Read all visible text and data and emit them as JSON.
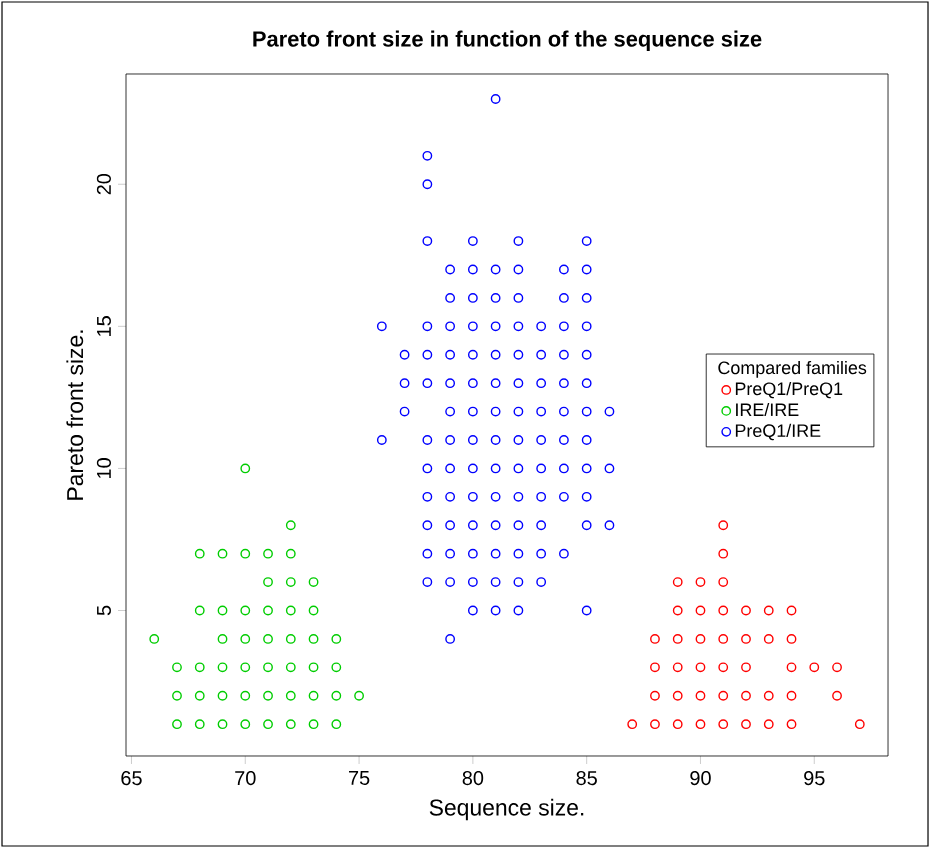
{
  "chart_data": {
    "type": "scatter",
    "title": "Pareto front size in function of the sequence size",
    "xlabel": "Sequence size.",
    "ylabel": "Pareto front size.",
    "legend_title": "Compared families",
    "xlim": [
      64.76,
      98.24
    ],
    "ylim": [
      -0.12,
      23.88
    ],
    "xticks": [
      65,
      70,
      75,
      80,
      85,
      90,
      95
    ],
    "yticks": [
      5,
      10,
      15,
      20
    ],
    "grid": false,
    "legend": "right",
    "marker": "circle",
    "series": [
      {
        "name": "PreQ1/PreQ1",
        "color": "#ff0000",
        "x": [
          91,
          91,
          89,
          90,
          91,
          89,
          90,
          91,
          92,
          93,
          94,
          88,
          89,
          90,
          91,
          92,
          93,
          94,
          88,
          89,
          90,
          91,
          92,
          94,
          95,
          96,
          88,
          89,
          90,
          91,
          92,
          93,
          94,
          96,
          87,
          88,
          89,
          90,
          91,
          92,
          93,
          94,
          97
        ],
        "values": [
          8,
          7,
          6,
          6,
          6,
          5,
          5,
          5,
          5,
          5,
          5,
          4,
          4,
          4,
          4,
          4,
          4,
          4,
          3,
          3,
          3,
          3,
          3,
          3,
          3,
          3,
          2,
          2,
          2,
          2,
          2,
          2,
          2,
          2,
          1,
          1,
          1,
          1,
          1,
          1,
          1,
          1,
          1
        ]
      },
      {
        "name": "IRE/IRE",
        "color": "#00cd00",
        "x": [
          70,
          72,
          68,
          69,
          70,
          71,
          72,
          71,
          72,
          73,
          68,
          69,
          70,
          71,
          72,
          73,
          66,
          69,
          70,
          71,
          72,
          73,
          74,
          67,
          68,
          69,
          70,
          71,
          72,
          73,
          74,
          67,
          68,
          69,
          70,
          71,
          72,
          73,
          74,
          75,
          67,
          68,
          69,
          70,
          71,
          72,
          73,
          74
        ],
        "values": [
          10,
          8,
          7,
          7,
          7,
          7,
          7,
          6,
          6,
          6,
          5,
          5,
          5,
          5,
          5,
          5,
          4,
          4,
          4,
          4,
          4,
          4,
          4,
          3,
          3,
          3,
          3,
          3,
          3,
          3,
          3,
          2,
          2,
          2,
          2,
          2,
          2,
          2,
          2,
          2,
          1,
          1,
          1,
          1,
          1,
          1,
          1,
          1
        ]
      },
      {
        "name": "PreQ1/IRE",
        "color": "#0000ff",
        "x": [
          81,
          78,
          78,
          78,
          80,
          82,
          85,
          79,
          80,
          81,
          82,
          84,
          85,
          79,
          80,
          81,
          82,
          84,
          85,
          76,
          78,
          79,
          80,
          81,
          82,
          83,
          84,
          85,
          77,
          78,
          79,
          80,
          81,
          82,
          83,
          84,
          85,
          77,
          78,
          79,
          80,
          81,
          82,
          83,
          84,
          85,
          77,
          79,
          80,
          81,
          82,
          83,
          84,
          85,
          86,
          76,
          78,
          79,
          80,
          81,
          82,
          83,
          84,
          85,
          78,
          79,
          80,
          81,
          82,
          83,
          84,
          85,
          86,
          78,
          79,
          80,
          81,
          82,
          83,
          84,
          85,
          78,
          79,
          80,
          81,
          82,
          83,
          85,
          86,
          78,
          79,
          80,
          81,
          82,
          83,
          84,
          78,
          79,
          80,
          81,
          82,
          83,
          80,
          81,
          82,
          85,
          79
        ],
        "values": [
          23,
          21,
          20,
          18,
          18,
          18,
          18,
          17,
          17,
          17,
          17,
          17,
          17,
          16,
          16,
          16,
          16,
          16,
          16,
          15,
          15,
          15,
          15,
          15,
          15,
          15,
          15,
          15,
          14,
          14,
          14,
          14,
          14,
          14,
          14,
          14,
          14,
          13,
          13,
          13,
          13,
          13,
          13,
          13,
          13,
          13,
          12,
          12,
          12,
          12,
          12,
          12,
          12,
          12,
          12,
          11,
          11,
          11,
          11,
          11,
          11,
          11,
          11,
          11,
          10,
          10,
          10,
          10,
          10,
          10,
          10,
          10,
          10,
          9,
          9,
          9,
          9,
          9,
          9,
          9,
          9,
          8,
          8,
          8,
          8,
          8,
          8,
          8,
          8,
          7,
          7,
          7,
          7,
          7,
          7,
          7,
          6,
          6,
          6,
          6,
          6,
          6,
          5,
          5,
          5,
          5,
          4
        ]
      }
    ]
  }
}
